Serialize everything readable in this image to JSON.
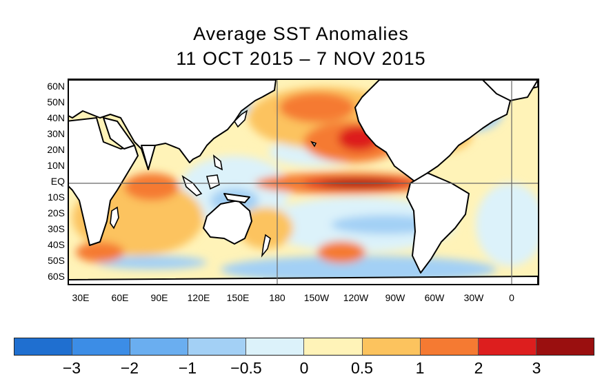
{
  "title_line1": "Average SST Anomalies",
  "title_line2": "11 OCT 2015 – 7 NOV 2015",
  "lat_labels": [
    "60N",
    "50N",
    "40N",
    "30N",
    "20N",
    "10N",
    "EQ",
    "10S",
    "20S",
    "30S",
    "40S",
    "50S",
    "60S"
  ],
  "lon_labels": [
    "30E",
    "60E",
    "90E",
    "120E",
    "150E",
    "180",
    "150W",
    "120W",
    "90W",
    "60W",
    "30W",
    "0"
  ],
  "colorbar_colors": [
    "#1f6fd0",
    "#3c8de6",
    "#6aaef0",
    "#a3d0f5",
    "#dcf2fa",
    "#fff3b8",
    "#fcc35e",
    "#f57a32",
    "#dd1e1e",
    "#9a0f0f"
  ],
  "colorbar_labels": [
    "−3",
    "−2",
    "−1",
    "−0.5",
    "0",
    "0.5",
    "1",
    "2",
    "3"
  ],
  "land_color": "#ffffff",
  "coast_color": "#000000"
}
